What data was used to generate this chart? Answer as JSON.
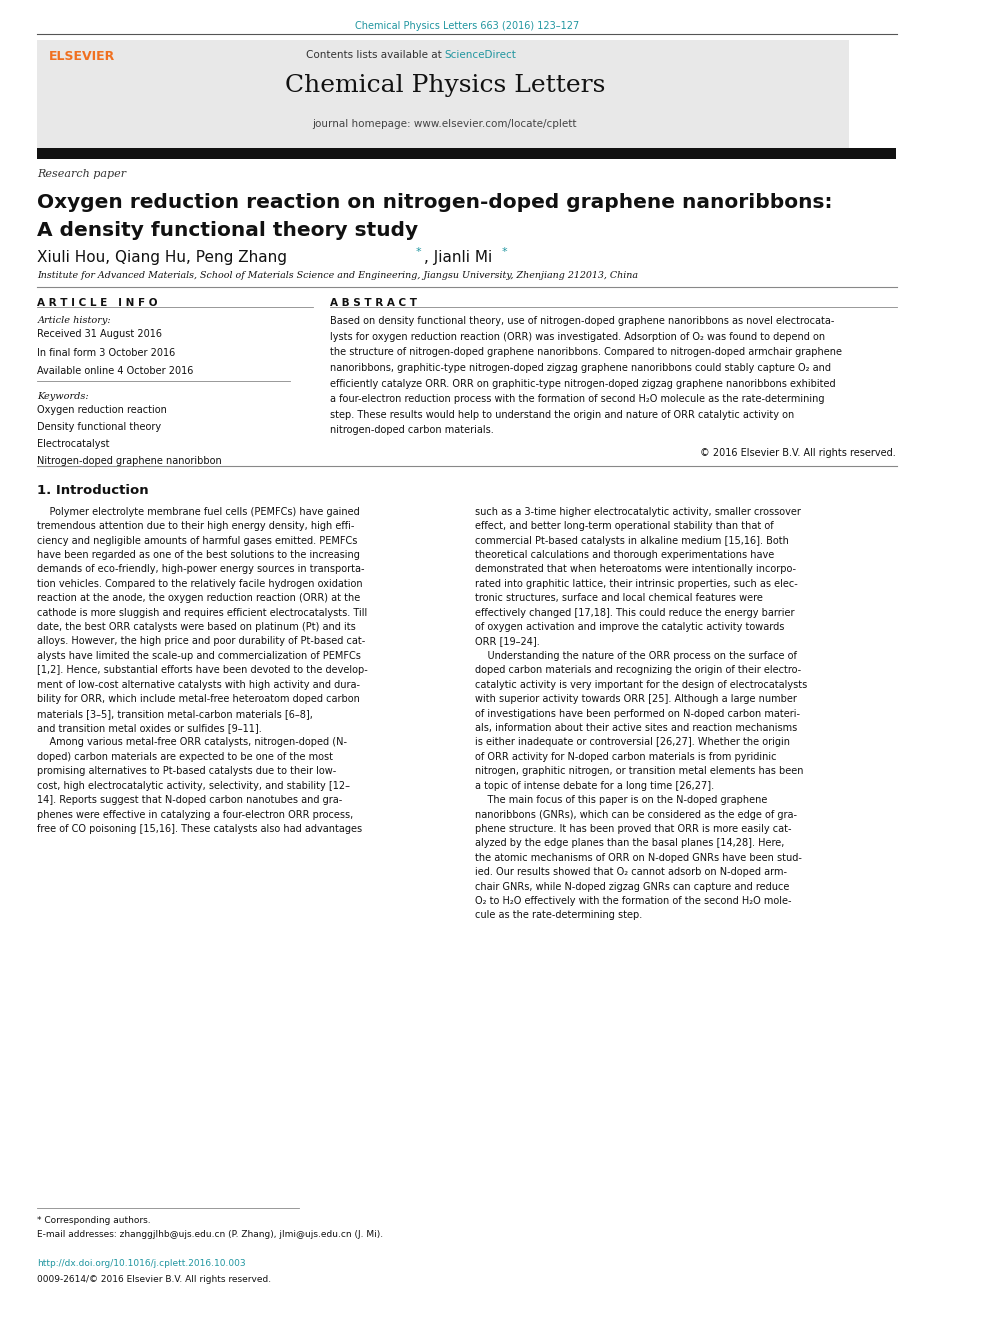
{
  "page_width": 9.92,
  "page_height": 13.23,
  "bg_color": "#ffffff",
  "journal_ref": "Chemical Physics Letters 663 (2016) 123–127",
  "journal_ref_color": "#2196a0",
  "contents_text": "Contents lists available at ",
  "sciencedirect_text": "ScienceDirect",
  "sciencedirect_color": "#2196a0",
  "journal_title": "Chemical Physics Letters",
  "journal_homepage": "journal homepage: www.elsevier.com/locate/cplett",
  "header_bg": "#e8e8e8",
  "research_paper_label": "Research paper",
  "article_title_line1": "Oxygen reduction reaction on nitrogen-doped graphene nanoribbons:",
  "article_title_line2": "A density functional theory study",
  "affiliation": "Institute for Advanced Materials, School of Materials Science and Engineering, Jiangsu University, Zhenjiang 212013, China",
  "article_info_header": "A R T I C L E   I N F O",
  "abstract_header": "A B S T R A C T",
  "article_history_label": "Article history:",
  "received": "Received 31 August 2016",
  "in_final": "In final form 3 October 2016",
  "available": "Available online 4 October 2016",
  "keywords_label": "Keywords:",
  "keyword1": "Oxygen reduction reaction",
  "keyword2": "Density functional theory",
  "keyword3": "Electrocatalyst",
  "keyword4": "Nitrogen-doped graphene nanoribbon",
  "copyright": "© 2016 Elsevier B.V. All rights reserved.",
  "section1_header": "1. Introduction",
  "footnote_star": "* Corresponding authors.",
  "footnote_email": "E-mail addresses: zhanggjlhb@ujs.edu.cn (P. Zhang), jlmi@ujs.edu.cn (J. Mi).",
  "doi_text": "http://dx.doi.org/10.1016/j.cplett.2016.10.003",
  "issn_text": "0009-2614/© 2016 Elsevier B.V. All rights reserved.",
  "elsevier_color": "#f07020",
  "link_color": "#2196a0",
  "abstract_lines": [
    "Based on density functional theory, use of nitrogen-doped graphene nanoribbons as novel electrocata-",
    "lysts for oxygen reduction reaction (ORR) was investigated. Adsorption of O₂ was found to depend on",
    "the structure of nitrogen-doped graphene nanoribbons. Compared to nitrogen-doped armchair graphene",
    "nanoribbons, graphitic-type nitrogen-doped zigzag graphene nanoribbons could stably capture O₂ and",
    "efficiently catalyze ORR. ORR on graphitic-type nitrogen-doped zigzag graphene nanoribbons exhibited",
    "a four-electron reduction process with the formation of second H₂O molecule as the rate-determining",
    "step. These results would help to understand the origin and nature of ORR catalytic activity on",
    "nitrogen-doped carbon materials."
  ],
  "col1_intro": [
    "    Polymer electrolyte membrane fuel cells (PEMFCs) have gained",
    "tremendous attention due to their high energy density, high effi-",
    "ciency and negligible amounts of harmful gases emitted. PEMFCs",
    "have been regarded as one of the best solutions to the increasing",
    "demands of eco-friendly, high-power energy sources in transporta-",
    "tion vehicles. Compared to the relatively facile hydrogen oxidation",
    "reaction at the anode, the oxygen reduction reaction (ORR) at the",
    "cathode is more sluggish and requires efficient electrocatalysts. Till",
    "date, the best ORR catalysts were based on platinum (Pt) and its",
    "alloys. However, the high price and poor durability of Pt-based cat-",
    "alysts have limited the scale-up and commercialization of PEMFCs",
    "[1,2]. Hence, substantial efforts have been devoted to the develop-",
    "ment of low-cost alternative catalysts with high activity and dura-",
    "bility for ORR, which include metal-free heteroatom doped carbon",
    "materials [3–5], transition metal-carbon materials [6–8],",
    "and transition metal oxides or sulfides [9–11].",
    "    Among various metal-free ORR catalysts, nitrogen-doped (N-",
    "doped) carbon materials are expected to be one of the most",
    "promising alternatives to Pt-based catalysts due to their low-",
    "cost, high electrocatalytic activity, selectivity, and stability [12–",
    "14]. Reports suggest that N-doped carbon nanotubes and gra-",
    "phenes were effective in catalyzing a four-electron ORR process,",
    "free of CO poisoning [15,16]. These catalysts also had advantages"
  ],
  "col2_intro": [
    "such as a 3-time higher electrocatalytic activity, smaller crossover",
    "effect, and better long-term operational stability than that of",
    "commercial Pt-based catalysts in alkaline medium [15,16]. Both",
    "theoretical calculations and thorough experimentations have",
    "demonstrated that when heteroatoms were intentionally incorpo-",
    "rated into graphitic lattice, their intrinsic properties, such as elec-",
    "tronic structures, surface and local chemical features were",
    "effectively changed [17,18]. This could reduce the energy barrier",
    "of oxygen activation and improve the catalytic activity towards",
    "ORR [19–24].",
    "    Understanding the nature of the ORR process on the surface of",
    "doped carbon materials and recognizing the origin of their electro-",
    "catalytic activity is very important for the design of electrocatalysts",
    "with superior activity towards ORR [25]. Although a large number",
    "of investigations have been performed on N-doped carbon materi-",
    "als, information about their active sites and reaction mechanisms",
    "is either inadequate or controversial [26,27]. Whether the origin",
    "of ORR activity for N-doped carbon materials is from pyridinic",
    "nitrogen, graphitic nitrogen, or transition metal elements has been",
    "a topic of intense debate for a long time [26,27].",
    "    The main focus of this paper is on the N-doped graphene",
    "nanoribbons (GNRs), which can be considered as the edge of gra-",
    "phene structure. It has been proved that ORR is more easily cat-",
    "alyzed by the edge planes than the basal planes [14,28]. Here,",
    "the atomic mechanisms of ORR on N-doped GNRs have been stud-",
    "ied. Our results showed that O₂ cannot adsorb on N-doped arm-",
    "chair GNRs, while N-doped zigzag GNRs can capture and reduce",
    "O₂ to H₂O effectively with the formation of the second H₂O mole-",
    "cule as the rate-determining step."
  ]
}
